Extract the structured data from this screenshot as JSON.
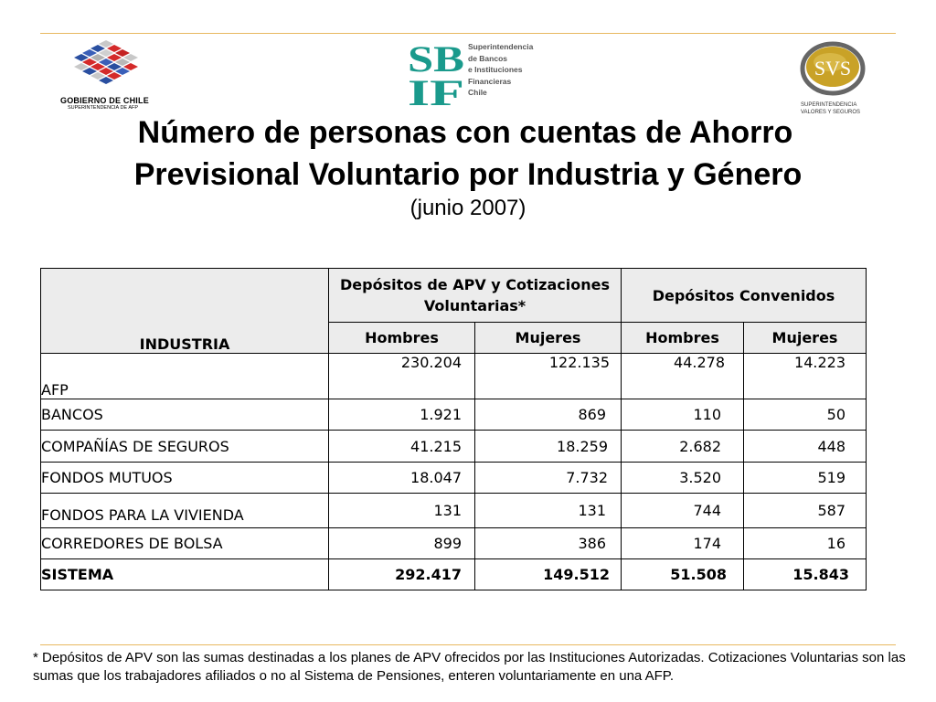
{
  "logos": {
    "gobierno_line1": "GOBIERNO DE CHILE",
    "gobierno_line2": "SUPERINTENDENCIA DE AFP",
    "sbif_mark": "SBIF",
    "sbif_lines": [
      "Superintendencia",
      "de Bancos",
      "e Instituciones",
      "Financieras",
      "Chile"
    ],
    "svs_mark": "SVS",
    "svs_line1": "SUPERINTENDENCIA",
    "svs_line2": "VALORES Y SEGUROS"
  },
  "title_line1": "Número de personas con cuentas de Ahorro",
  "title_line2": "Previsional Voluntario por Industria y Género",
  "subtitle": "(junio 2007)",
  "table": {
    "industry_header": "INDUSTRIA",
    "group1": "Depósitos de APV y Cotizaciones Voluntarias*",
    "group2": "Depósitos Convenidos",
    "sub_headers": [
      "Hombres",
      "Mujeres",
      "Hombres",
      "Mujeres"
    ],
    "rows": [
      {
        "label": "AFP",
        "values": [
          "230.204",
          "122.135",
          "44.278",
          "14.223"
        ]
      },
      {
        "label": "BANCOS",
        "values": [
          "1.921",
          "869",
          "110",
          "50"
        ]
      },
      {
        "label": "COMPAÑÍAS DE SEGUROS",
        "values": [
          "41.215",
          "18.259",
          "2.682",
          "448"
        ]
      },
      {
        "label": "FONDOS MUTUOS",
        "values": [
          "18.047",
          "7.732",
          "3.520",
          "519"
        ]
      },
      {
        "label": "FONDOS PARA LA VIVIENDA",
        "values": [
          "131",
          "131",
          "744",
          "587"
        ]
      },
      {
        "label": "CORREDORES DE BOLSA",
        "values": [
          "899",
          "386",
          "174",
          "16"
        ]
      }
    ],
    "total": {
      "label": "SISTEMA",
      "values": [
        "292.417",
        "149.512",
        "51.508",
        "15.843"
      ]
    }
  },
  "footnote": "* Depósitos de APV son las sumas destinadas a los planes de APV ofrecidos por las Instituciones Autorizadas. Cotizaciones Voluntarias son las sumas que los trabajadores afiliados o no al Sistema de Pensiones, enteren voluntariamente en una AFP.",
  "colors": {
    "rule": "#e8b860",
    "header_fill": "#ececec",
    "sbif_teal": "#1a9a8c",
    "svs_gold": "#c9a227"
  }
}
